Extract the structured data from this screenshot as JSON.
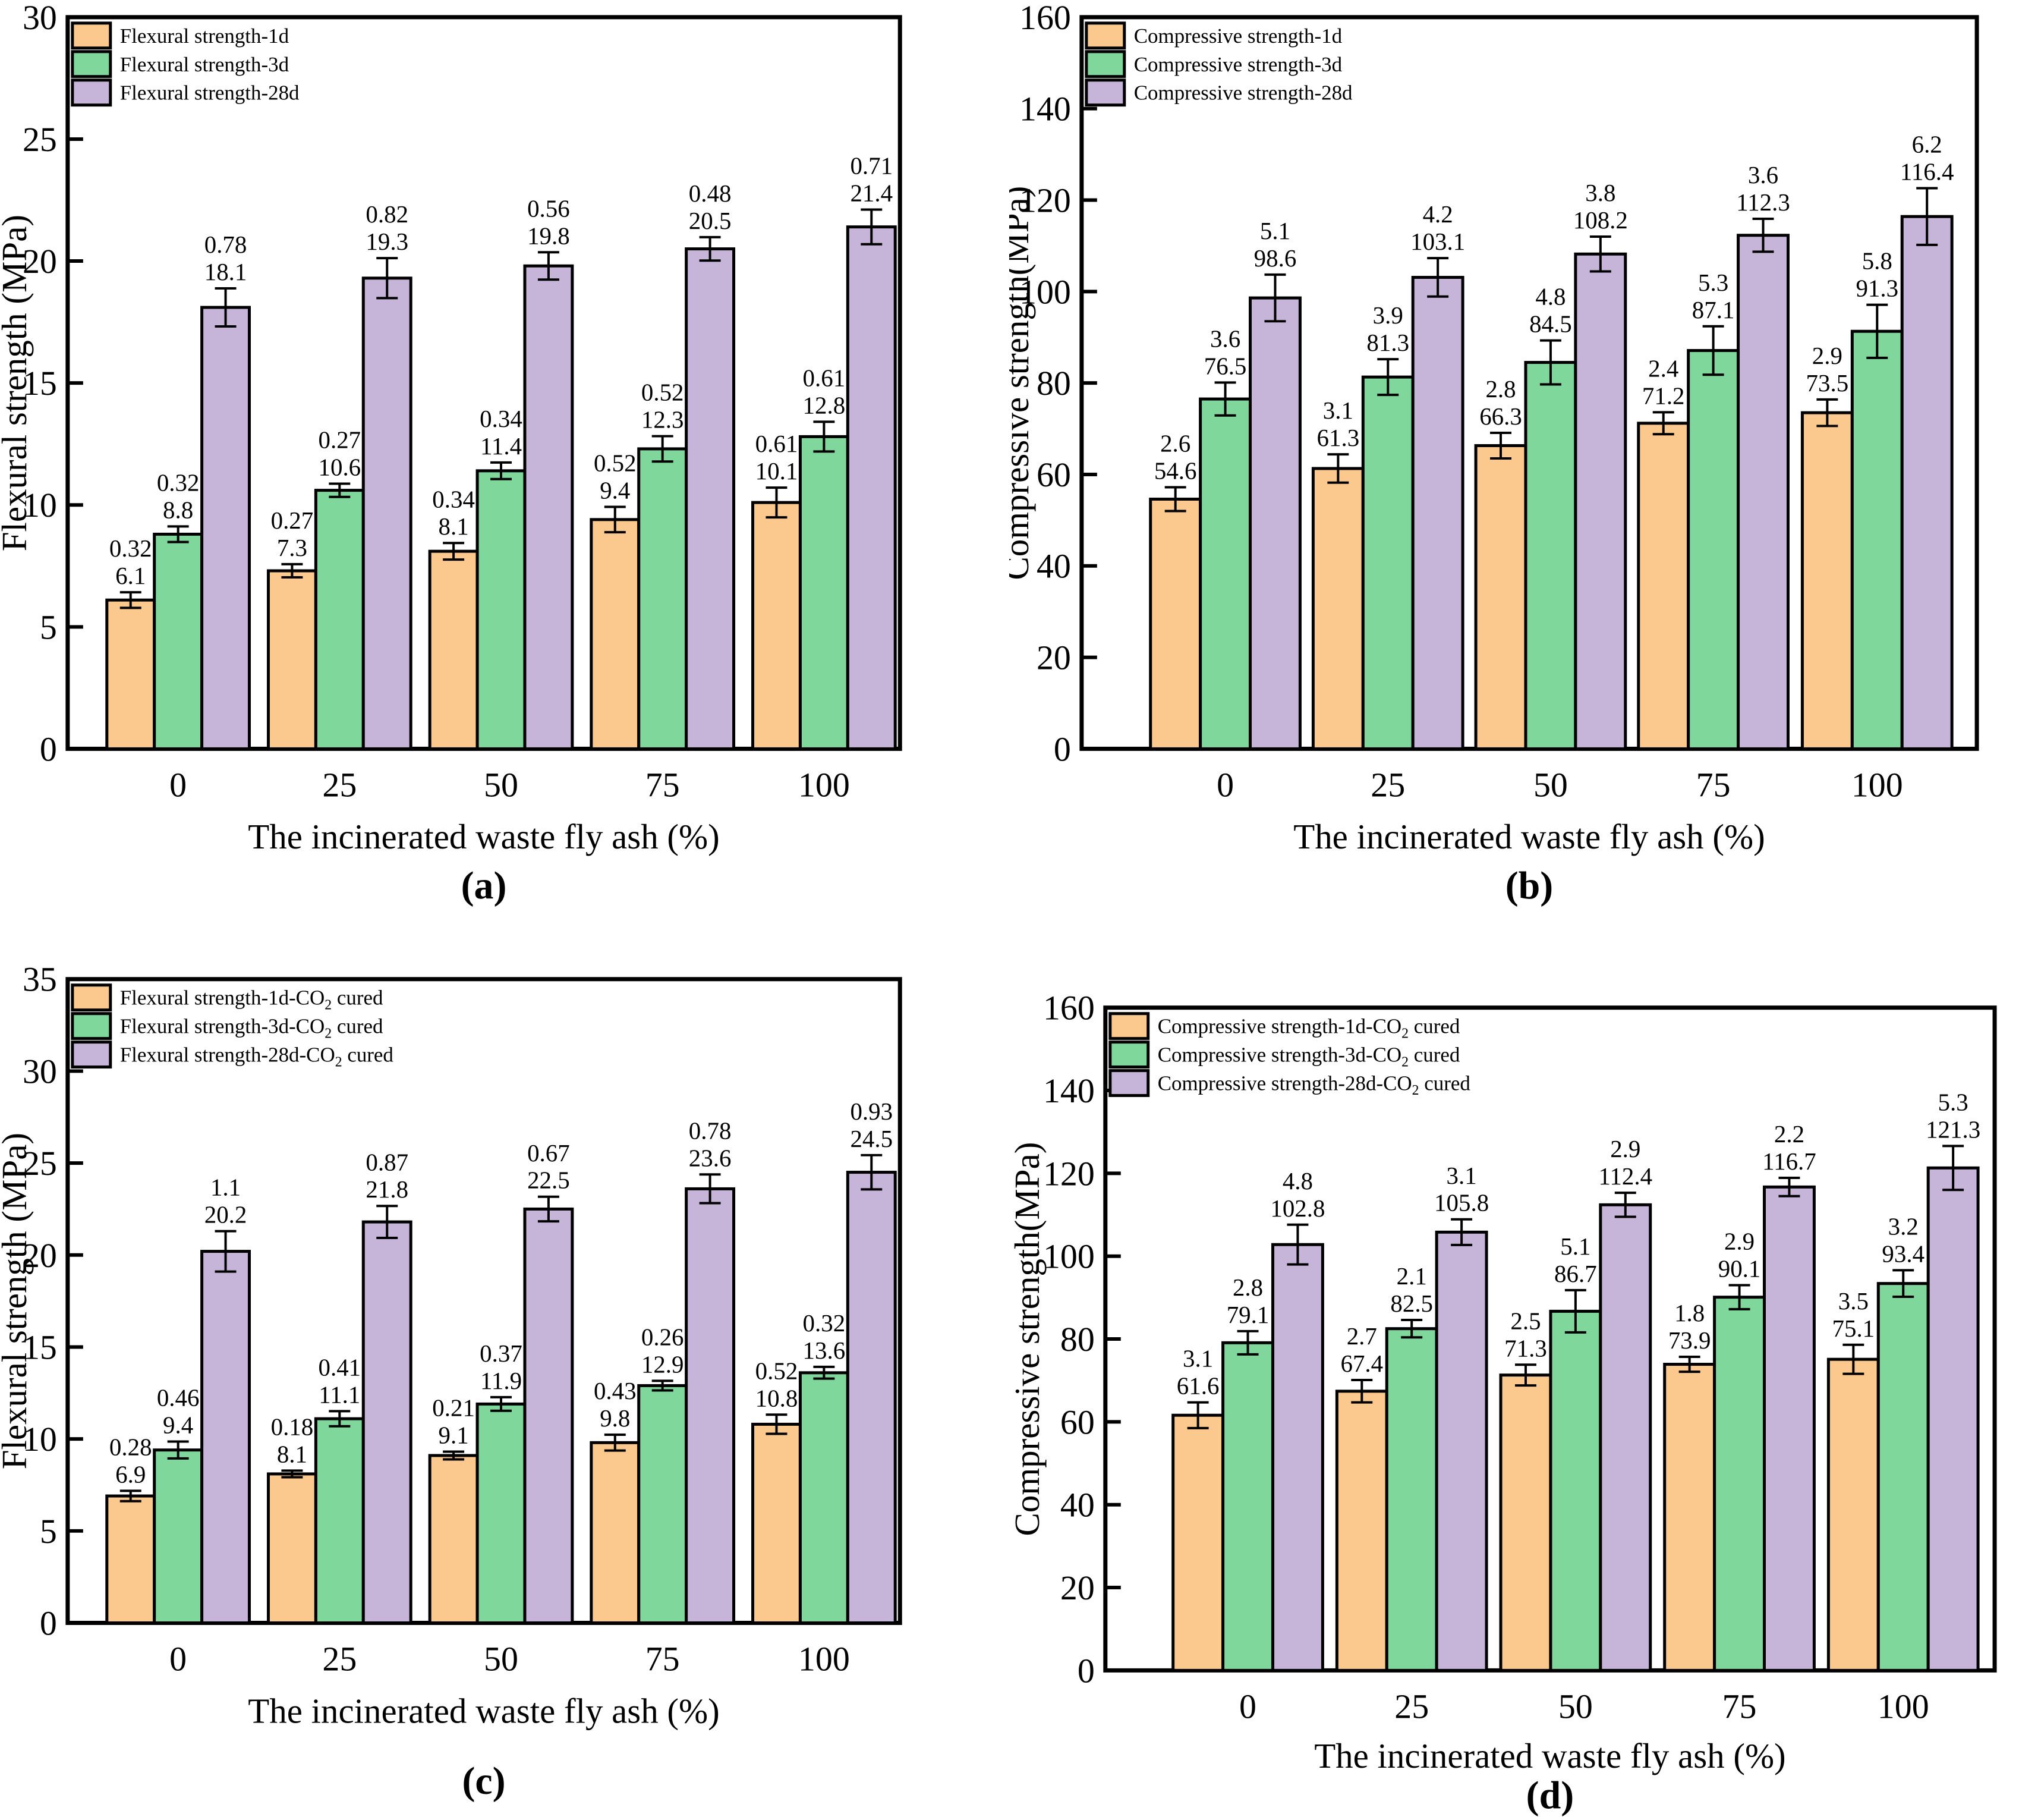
{
  "figure": {
    "background": "#ffffff",
    "description_xlabel": "The incinerated waste fly ash (%)"
  },
  "colors": {
    "series_1d": "#FBC98D",
    "series_3d": "#7FD79C",
    "series_28d": "#C7B5D9",
    "outline": "#000000"
  },
  "chart_data": [
    {
      "id": "a",
      "type": "bar",
      "panel_label": "(a)",
      "ylabel": "Flexural strength (MPa)",
      "xlabel": "The incinerated waste fly ash (%)",
      "ylim": [
        0,
        30
      ],
      "ytick_step": 5,
      "ytick_labels": [
        "0",
        "5",
        "10",
        "15",
        "20",
        "25",
        "30"
      ],
      "categories": [
        "0",
        "25",
        "50",
        "75",
        "100"
      ],
      "grid": false,
      "legend_position": "top-left",
      "series": [
        {
          "name": "Flexural strength-1d",
          "color": "#FBC98D",
          "values": [
            6.1,
            7.3,
            8.1,
            9.4,
            10.1
          ],
          "errors": [
            0.32,
            0.27,
            0.34,
            0.52,
            0.61
          ]
        },
        {
          "name": "Flexural strength-3d",
          "color": "#7FD79C",
          "values": [
            8.8,
            10.6,
            11.4,
            12.3,
            12.8
          ],
          "errors": [
            0.32,
            0.27,
            0.34,
            0.52,
            0.61
          ]
        },
        {
          "name": "Flexural strength-28d",
          "color": "#C7B5D9",
          "values": [
            18.1,
            19.3,
            19.8,
            20.5,
            21.4
          ],
          "errors": [
            0.78,
            0.82,
            0.56,
            0.48,
            0.71
          ]
        }
      ]
    },
    {
      "id": "b",
      "type": "bar",
      "panel_label": "(b)",
      "ylabel": "Compressive strength(MPa)",
      "xlabel": "The incinerated waste fly ash (%)",
      "ylim": [
        0,
        160
      ],
      "ytick_step": 20,
      "ytick_labels": [
        "0",
        "20",
        "40",
        "60",
        "80",
        "100",
        "120",
        "140",
        "160"
      ],
      "categories": [
        "0",
        "25",
        "50",
        "75",
        "100"
      ],
      "grid": false,
      "legend_position": "top-left",
      "series": [
        {
          "name": "Compressive strength-1d",
          "color": "#FBC98D",
          "values": [
            54.6,
            61.3,
            66.3,
            71.2,
            73.5
          ],
          "errors": [
            2.6,
            3.1,
            2.8,
            2.4,
            2.9
          ]
        },
        {
          "name": "Compressive strength-3d",
          "color": "#7FD79C",
          "values": [
            76.5,
            81.3,
            84.5,
            87.1,
            91.3
          ],
          "errors": [
            3.6,
            3.9,
            4.8,
            5.3,
            5.8
          ]
        },
        {
          "name": "Compressive strength-28d",
          "color": "#C7B5D9",
          "values": [
            98.6,
            103.1,
            108.2,
            112.3,
            116.4
          ],
          "errors": [
            5.1,
            4.2,
            3.8,
            3.6,
            6.2
          ]
        }
      ]
    },
    {
      "id": "c",
      "type": "bar",
      "panel_label": "(c)",
      "ylabel": "Flexural strength (MPa)",
      "xlabel": "The incinerated waste fly ash (%)",
      "ylim": [
        0,
        35
      ],
      "ytick_step": 5,
      "ytick_labels": [
        "0",
        "5",
        "10",
        "15",
        "20",
        "25",
        "30",
        "35"
      ],
      "categories": [
        "0",
        "25",
        "50",
        "75",
        "100"
      ],
      "grid": false,
      "legend_position": "top-left",
      "series": [
        {
          "name": "Flexural strength-1d-CO₂ cured",
          "color": "#FBC98D",
          "values": [
            6.9,
            8.1,
            9.1,
            9.8,
            10.8
          ],
          "errors": [
            0.28,
            0.18,
            0.21,
            0.43,
            0.52
          ]
        },
        {
          "name": "Flexural strength-3d-CO₂ cured",
          "color": "#7FD79C",
          "values": [
            9.4,
            11.1,
            11.9,
            12.9,
            13.6
          ],
          "errors": [
            0.46,
            0.41,
            0.37,
            0.26,
            0.32
          ]
        },
        {
          "name": "Flexural strength-28d-CO₂ cured",
          "color": "#C7B5D9",
          "values": [
            20.2,
            21.8,
            22.5,
            23.6,
            24.5
          ],
          "errors": [
            1.1,
            0.87,
            0.67,
            0.78,
            0.93
          ]
        }
      ]
    },
    {
      "id": "d",
      "type": "bar",
      "panel_label": "(d)",
      "ylabel": "Compressive strength(MPa)",
      "xlabel": "The incinerated waste fly ash (%)",
      "ylim": [
        0,
        160
      ],
      "ytick_step": 20,
      "ytick_labels": [
        "0",
        "20",
        "40",
        "60",
        "80",
        "100",
        "120",
        "140",
        "160"
      ],
      "categories": [
        "0",
        "25",
        "50",
        "75",
        "100"
      ],
      "grid": false,
      "legend_position": "top-left",
      "series": [
        {
          "name": "Compressive strength-1d-CO₂ cured",
          "color": "#FBC98D",
          "values": [
            61.6,
            67.4,
            71.3,
            73.9,
            75.1
          ],
          "errors": [
            3.1,
            2.7,
            2.5,
            1.8,
            3.5
          ]
        },
        {
          "name": "Compressive strength-3d-CO₂ cured",
          "color": "#7FD79C",
          "values": [
            79.1,
            82.5,
            86.7,
            90.1,
            93.4
          ],
          "errors": [
            2.8,
            2.1,
            5.1,
            2.9,
            3.2
          ]
        },
        {
          "name": "Compressive strength-28d-CO₂ cured",
          "color": "#C7B5D9",
          "values": [
            102.8,
            105.8,
            112.4,
            116.7,
            121.3
          ],
          "errors": [
            4.8,
            3.1,
            2.9,
            2.2,
            5.3
          ]
        }
      ]
    }
  ]
}
